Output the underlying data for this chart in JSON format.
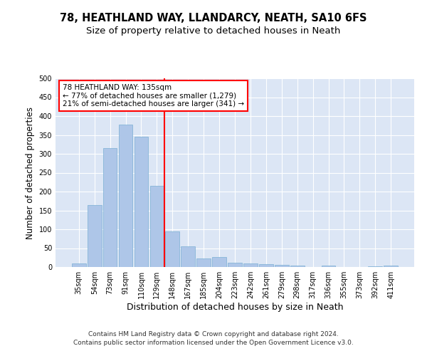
{
  "title1": "78, HEATHLAND WAY, LLANDARCY, NEATH, SA10 6FS",
  "title2": "Size of property relative to detached houses in Neath",
  "xlabel": "Distribution of detached houses by size in Neath",
  "ylabel": "Number of detached properties",
  "categories": [
    "35sqm",
    "54sqm",
    "73sqm",
    "91sqm",
    "110sqm",
    "129sqm",
    "148sqm",
    "167sqm",
    "185sqm",
    "204sqm",
    "223sqm",
    "242sqm",
    "261sqm",
    "279sqm",
    "298sqm",
    "317sqm",
    "336sqm",
    "355sqm",
    "373sqm",
    "392sqm",
    "411sqm"
  ],
  "values": [
    10,
    165,
    315,
    378,
    345,
    215,
    95,
    55,
    22,
    27,
    12,
    10,
    7,
    5,
    3,
    0,
    3,
    0,
    0,
    2,
    3
  ],
  "bar_color": "#aec6e8",
  "bar_edge_color": "#7aafd4",
  "vline_x": 5.5,
  "vline_color": "red",
  "annotation_text": "78 HEATHLAND WAY: 135sqm\n← 77% of detached houses are smaller (1,279)\n21% of semi-detached houses are larger (341) →",
  "annotation_box_color": "white",
  "annotation_box_edge": "red",
  "ylim": [
    0,
    500
  ],
  "yticks": [
    0,
    50,
    100,
    150,
    200,
    250,
    300,
    350,
    400,
    450,
    500
  ],
  "footer1": "Contains HM Land Registry data © Crown copyright and database right 2024.",
  "footer2": "Contains public sector information licensed under the Open Government Licence v3.0.",
  "plot_bg_color": "#dce6f5",
  "title1_fontsize": 10.5,
  "title2_fontsize": 9.5,
  "tick_fontsize": 7,
  "ylabel_fontsize": 8.5,
  "xlabel_fontsize": 9,
  "footer_fontsize": 6.5,
  "annotation_fontsize": 7.5
}
